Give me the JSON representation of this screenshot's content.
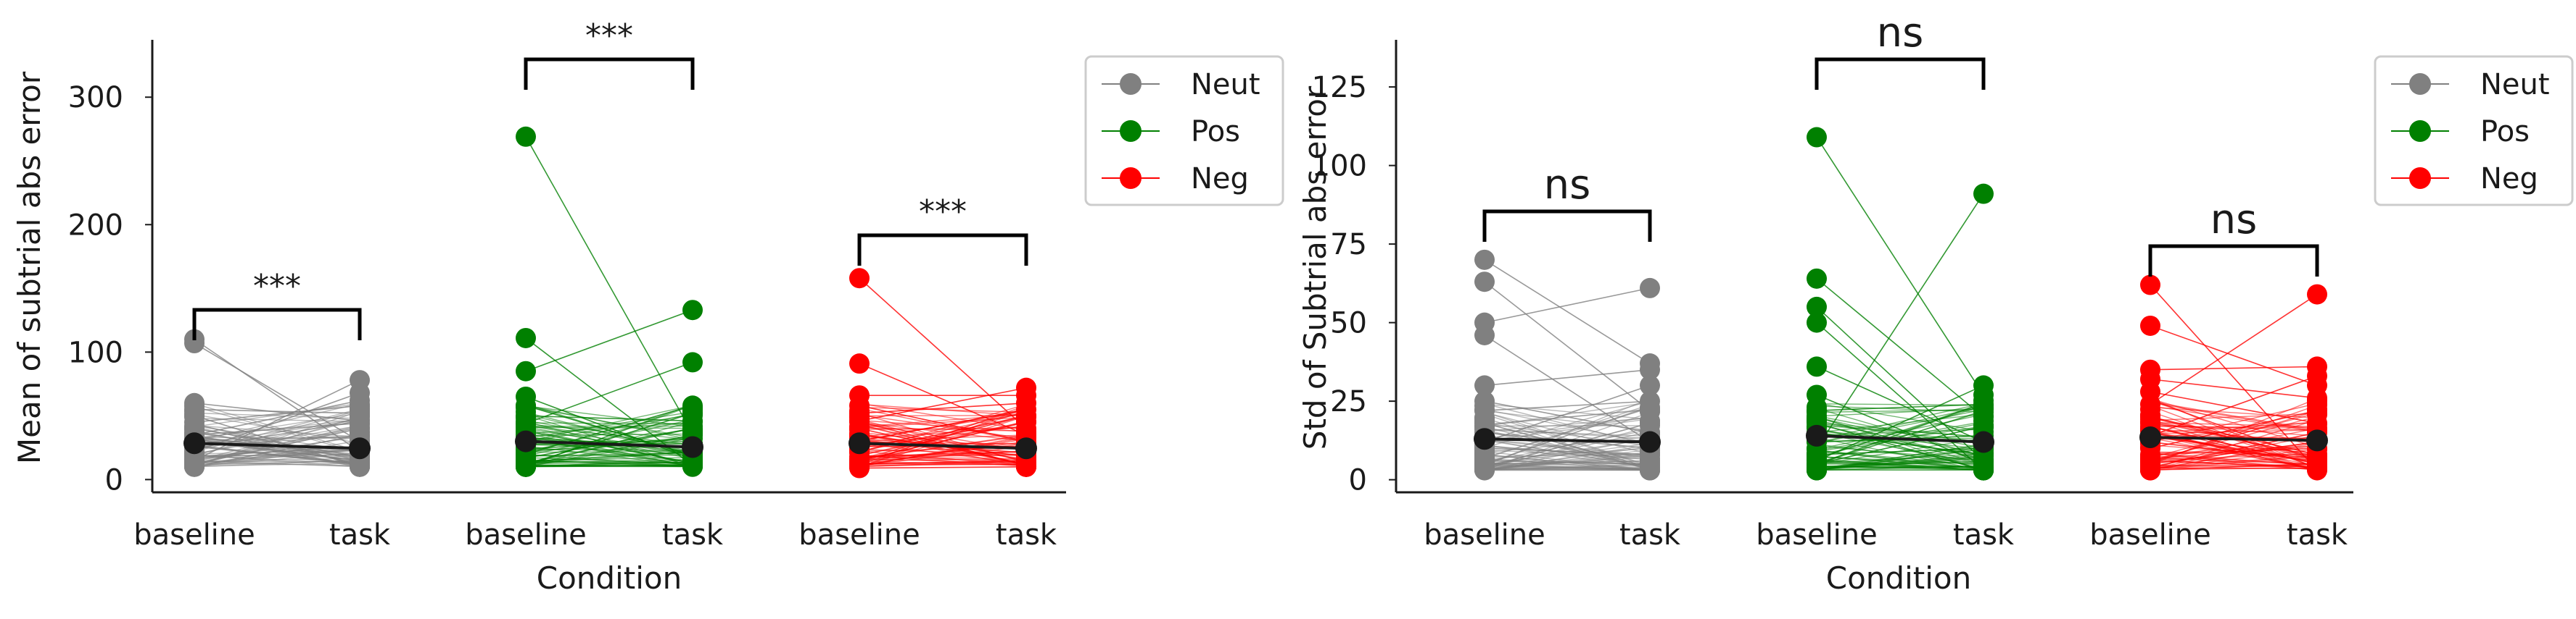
{
  "chart_data": [
    {
      "type": "line",
      "chart_kind": "paired spaghetti plot (individual subjects baseline vs task) with group mean line",
      "ylabel": "Mean of subtrial abs error",
      "xlabel": "Condition",
      "ylim": [
        -10,
        345
      ],
      "yticks": [
        0,
        100,
        200,
        300
      ],
      "grid": false,
      "legend_position": "outside-right-top",
      "groups": [
        {
          "name": "Neut",
          "color": "#808080",
          "categories": [
            "baseline",
            "task"
          ],
          "mean": [
            28.5,
            24.5
          ],
          "significance": "***",
          "highlighted_points": {
            "baseline": [
              110,
              107,
              60,
              55,
              50,
              45,
              40,
              35,
              30,
              26,
              22,
              18,
              15,
              12,
              10
            ],
            "task": [
              78,
              68,
              62,
              58,
              52,
              46,
              40,
              35,
              30,
              26,
              22,
              18,
              15,
              12,
              10
            ]
          }
        },
        {
          "name": "Pos",
          "color": "#008000",
          "categories": [
            "baseline",
            "task"
          ],
          "mean": [
            30,
            25.5
          ],
          "significance": "***",
          "highlighted_points": {
            "baseline": [
              269,
              111,
              85,
              65,
              58,
              50,
              44,
              38,
              33,
              28,
              24,
              20,
              17,
              14,
              12
            ],
            "task": [
              133,
              92,
              58,
              52,
              46,
              40,
              36,
              32,
              28,
              25,
              22,
              19,
              16,
              13,
              11
            ]
          }
        },
        {
          "name": "Neg",
          "color": "#ff0000",
          "categories": [
            "baseline",
            "task"
          ],
          "mean": [
            28.5,
            24.5
          ],
          "significance": "***",
          "highlighted_points": {
            "baseline": [
              158,
              91,
              66,
              58,
              52,
              46,
              40,
              35,
              30,
              26,
              22,
              18,
              15,
              12,
              9
            ],
            "task": [
              72,
              66,
              60,
              55,
              50,
              45,
              40,
              35,
              30,
              26,
              22,
              18,
              15,
              12,
              10
            ]
          }
        }
      ],
      "legend": [
        "Neut",
        "Pos",
        "Neg"
      ]
    },
    {
      "type": "line",
      "chart_kind": "paired spaghetti plot (individual subjects baseline vs task) with group mean line",
      "ylabel": "Std of Subtrial abs error",
      "xlabel": "Condition",
      "ylim": [
        -4,
        140
      ],
      "yticks": [
        0,
        25,
        50,
        75,
        100,
        125
      ],
      "grid": false,
      "legend_position": "outside-right-top",
      "groups": [
        {
          "name": "Neut",
          "color": "#808080",
          "categories": [
            "baseline",
            "task"
          ],
          "mean": [
            13,
            12
          ],
          "significance": "ns",
          "highlighted_points": {
            "baseline": [
              70,
              63,
              50,
              46,
              30,
              25,
              22,
              18,
              15,
              12,
              10,
              8,
              6,
              5,
              4
            ],
            "task": [
              61,
              37,
              35,
              30,
              25,
              22,
              18,
              15,
              12,
              10,
              8,
              6,
              5,
              4,
              3
            ]
          }
        },
        {
          "name": "Pos",
          "color": "#008000",
          "categories": [
            "baseline",
            "task"
          ],
          "mean": [
            14,
            12
          ],
          "significance": "ns",
          "highlighted_points": {
            "baseline": [
              109,
              64,
              55,
              50,
              36,
              27,
              22,
              18,
              15,
              12,
              10,
              8,
              6,
              5,
              4
            ],
            "task": [
              91,
              30,
              27,
              24,
              20,
              17,
              14,
              12,
              10,
              8,
              6,
              5,
              4,
              3,
              3
            ]
          }
        },
        {
          "name": "Neg",
          "color": "#ff0000",
          "categories": [
            "baseline",
            "task"
          ],
          "mean": [
            13.5,
            12.5
          ],
          "significance": "ns",
          "highlighted_points": {
            "baseline": [
              62,
              49,
              35,
              32,
              28,
              24,
              20,
              17,
              14,
              12,
              10,
              8,
              6,
              5,
              4
            ],
            "task": [
              59,
              36,
              33,
              30,
              26,
              22,
              18,
              15,
              12,
              10,
              8,
              6,
              5,
              4,
              3
            ]
          }
        }
      ],
      "legend": [
        "Neut",
        "Pos",
        "Neg"
      ]
    }
  ]
}
